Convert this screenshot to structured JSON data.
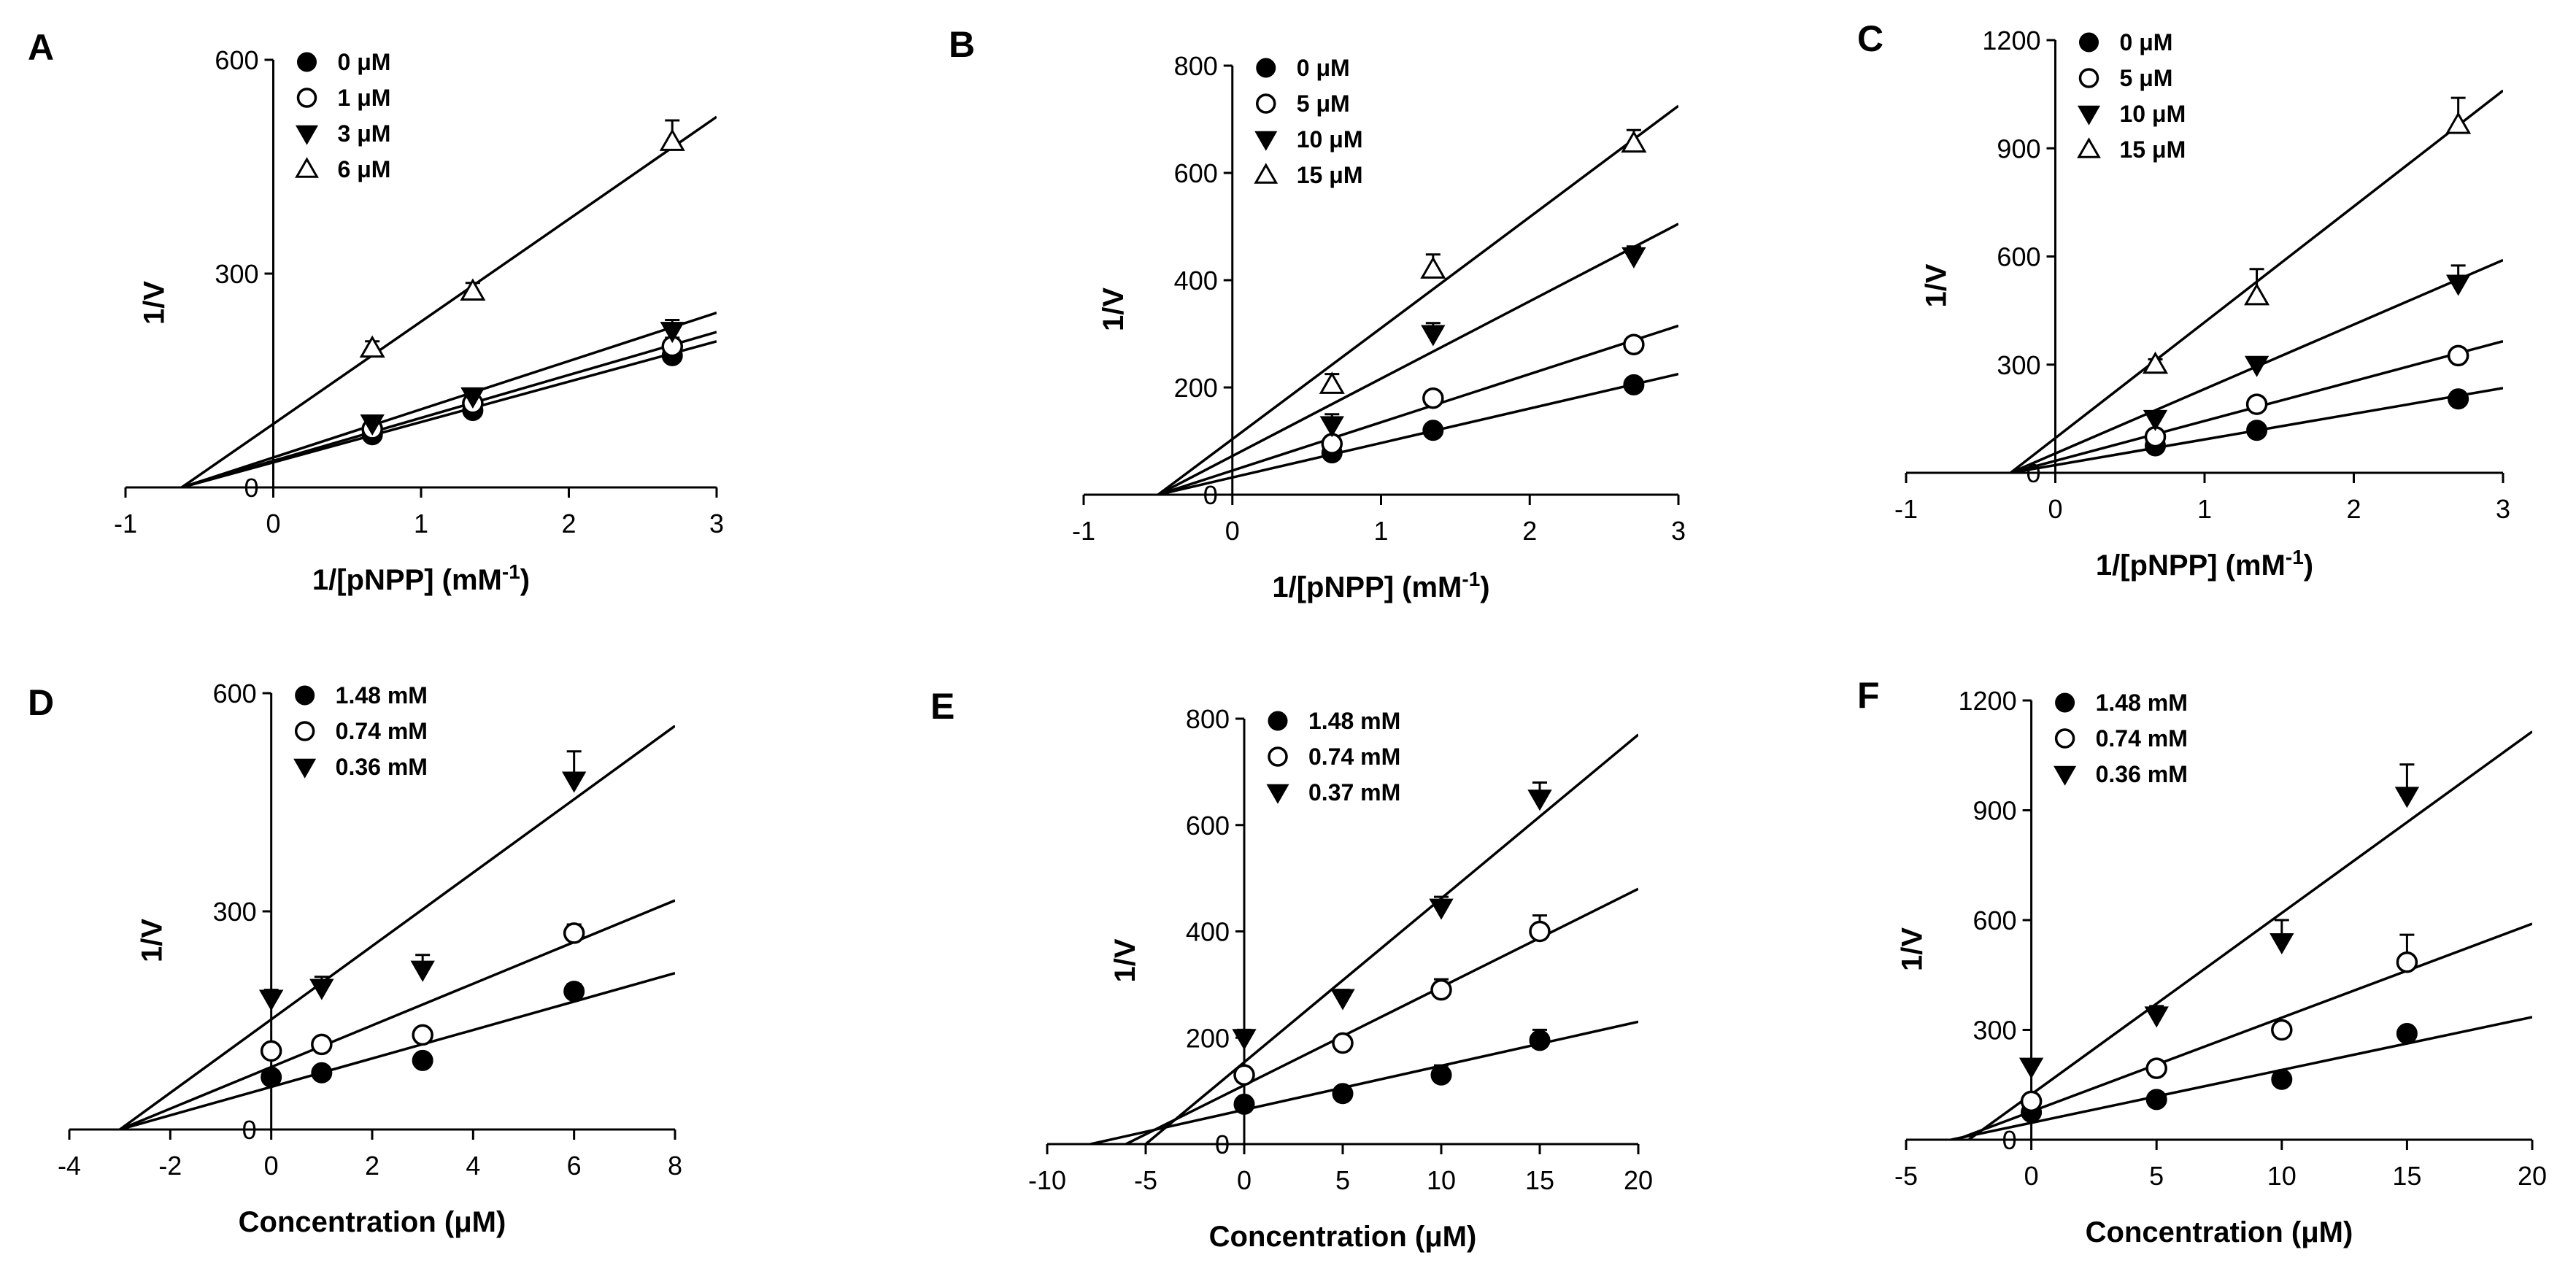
{
  "colors": {
    "ink": "#000000",
    "background": "#ffffff",
    "open_fill": "#ffffff"
  },
  "chart_data": [
    {
      "panel": "A",
      "type": "scatter",
      "xlabel": "1/[pNPP] (mM",
      "xlabel_sup": "-1",
      "xlabel_end": ")",
      "ylabel": "1/V",
      "xlim": [
        -1,
        3
      ],
      "ylim": [
        0,
        600
      ],
      "xticks": [
        -1,
        0,
        1,
        2,
        3
      ],
      "yticks": [
        0,
        300,
        600
      ],
      "legend_position": "top-left",
      "series": [
        {
          "name": "0 μM",
          "marker": "filled-circle",
          "x": [
            0.67,
            1.35,
            2.7
          ],
          "y": [
            74,
            108,
            185
          ],
          "err": [
            6,
            8,
            10
          ],
          "line": [
            [
              -0.62,
              0
            ],
            [
              3,
              205
            ]
          ]
        },
        {
          "name": "1 μM",
          "marker": "open-circle",
          "x": [
            0.67,
            1.35,
            2.7
          ],
          "y": [
            82,
            118,
            198
          ],
          "err": [
            6,
            8,
            12
          ],
          "line": [
            [
              -0.62,
              0
            ],
            [
              3,
              218
            ]
          ]
        },
        {
          "name": "3 μM",
          "marker": "filled-triangle-down",
          "x": [
            0.67,
            1.35,
            2.7
          ],
          "y": [
            90,
            128,
            220
          ],
          "err": [
            8,
            8,
            15
          ],
          "line": [
            [
              -0.62,
              0
            ],
            [
              3,
              245
            ]
          ]
        },
        {
          "name": "6 μM",
          "marker": "open-triangle-up",
          "x": [
            0.67,
            1.35,
            2.7
          ],
          "y": [
            195,
            275,
            485
          ],
          "err": [
            10,
            12,
            30
          ],
          "line": [
            [
              -0.62,
              0
            ],
            [
              3,
              520
            ]
          ]
        }
      ]
    },
    {
      "panel": "B",
      "type": "scatter",
      "xlabel": "1/[pNPP] (mM",
      "xlabel_sup": "-1",
      "xlabel_end": ")",
      "ylabel": "1/V",
      "xlim": [
        -1,
        3
      ],
      "ylim": [
        0,
        800
      ],
      "xticks": [
        -1,
        0,
        1,
        2,
        3
      ],
      "yticks": [
        0,
        200,
        400,
        600,
        800
      ],
      "legend_position": "top-left",
      "series": [
        {
          "name": "0 μM",
          "marker": "filled-circle",
          "x": [
            0.67,
            1.35,
            2.7
          ],
          "y": [
            78,
            120,
            205
          ],
          "err": [
            5,
            8,
            8
          ],
          "line": [
            [
              -0.5,
              0
            ],
            [
              3,
              225
            ]
          ]
        },
        {
          "name": "5 μM",
          "marker": "open-circle",
          "x": [
            0.67,
            1.35,
            2.7
          ],
          "y": [
            95,
            180,
            280
          ],
          "err": [
            8,
            10,
            12
          ],
          "line": [
            [
              -0.5,
              0
            ],
            [
              3,
              315
            ]
          ]
        },
        {
          "name": "10 μM",
          "marker": "filled-triangle-down",
          "x": [
            0.67,
            1.35,
            2.7
          ],
          "y": [
            130,
            300,
            445
          ],
          "err": [
            20,
            20,
            18
          ],
          "line": [
            [
              -0.5,
              0
            ],
            [
              3,
              505
            ]
          ]
        },
        {
          "name": "15 μM",
          "marker": "open-triangle-up",
          "x": [
            0.67,
            1.35,
            2.7
          ],
          "y": [
            205,
            420,
            655
          ],
          "err": [
            20,
            28,
            25
          ],
          "line": [
            [
              -0.5,
              0
            ],
            [
              3,
              725
            ]
          ]
        }
      ]
    },
    {
      "panel": "C",
      "type": "scatter",
      "xlabel": "1/[pNPP] (mM",
      "xlabel_sup": "-1",
      "xlabel_end": ")",
      "ylabel": "1/V",
      "xlim": [
        -1,
        3
      ],
      "ylim": [
        0,
        1200
      ],
      "xticks": [
        -1,
        0,
        1,
        2,
        3
      ],
      "yticks": [
        0,
        300,
        600,
        900,
        1200
      ],
      "legend_position": "top-left",
      "series": [
        {
          "name": "0 μM",
          "marker": "filled-circle",
          "x": [
            0.67,
            1.35,
            2.7
          ],
          "y": [
            75,
            118,
            205
          ],
          "err": [
            5,
            8,
            8
          ],
          "line": [
            [
              -0.3,
              0
            ],
            [
              3,
              235
            ]
          ]
        },
        {
          "name": "5 μM",
          "marker": "open-circle",
          "x": [
            0.67,
            1.35,
            2.7
          ],
          "y": [
            100,
            190,
            325
          ],
          "err": [
            8,
            10,
            12
          ],
          "line": [
            [
              -0.3,
              0
            ],
            [
              3,
              365
            ]
          ]
        },
        {
          "name": "10 μM",
          "marker": "filled-triangle-down",
          "x": [
            0.67,
            1.35,
            2.7
          ],
          "y": [
            150,
            300,
            525
          ],
          "err": [
            10,
            15,
            50
          ],
          "line": [
            [
              -0.3,
              0
            ],
            [
              3,
              590
            ]
          ]
        },
        {
          "name": "15 μM",
          "marker": "open-triangle-up",
          "x": [
            0.67,
            1.35,
            2.7
          ],
          "y": [
            300,
            490,
            965
          ],
          "err": [
            15,
            75,
            75
          ],
          "line": [
            [
              -0.3,
              0
            ],
            [
              3,
              1060
            ]
          ]
        }
      ]
    },
    {
      "panel": "D",
      "type": "scatter",
      "xlabel": "Concentration (μM)",
      "ylabel": "1/V",
      "xlim": [
        -4,
        8
      ],
      "ylim": [
        0,
        600
      ],
      "xticks": [
        -4,
        -2,
        0,
        2,
        4,
        6,
        8
      ],
      "yticks": [
        0,
        300,
        600
      ],
      "legend_position": "top-left",
      "series": [
        {
          "name": "1.48 mM",
          "marker": "filled-circle",
          "x": [
            0,
            1,
            3,
            6
          ],
          "y": [
            72,
            78,
            95,
            190
          ],
          "err": [
            5,
            5,
            6,
            10
          ],
          "line": [
            [
              -3.0,
              0
            ],
            [
              8,
              215
            ]
          ]
        },
        {
          "name": "0.74 mM",
          "marker": "open-circle",
          "x": [
            0,
            1,
            3,
            6
          ],
          "y": [
            108,
            117,
            130,
            270
          ],
          "err": [
            6,
            6,
            8,
            12
          ],
          "line": [
            [
              -3.0,
              0
            ],
            [
              8,
              315
            ]
          ]
        },
        {
          "name": "0.36 mM",
          "marker": "filled-triangle-down",
          "x": [
            0,
            1,
            3,
            6
          ],
          "y": [
            180,
            195,
            220,
            480
          ],
          "err": [
            12,
            15,
            20,
            40
          ],
          "line": [
            [
              -3.0,
              0
            ],
            [
              8,
              555
            ]
          ]
        }
      ]
    },
    {
      "panel": "E",
      "type": "scatter",
      "xlabel": "Concentration (μM)",
      "ylabel": "1/V",
      "xlim": [
        -10,
        20
      ],
      "ylim": [
        0,
        800
      ],
      "xticks": [
        -10,
        -5,
        0,
        5,
        10,
        15,
        20
      ],
      "yticks": [
        0,
        200,
        400,
        600,
        800
      ],
      "legend_position": "top-left",
      "series": [
        {
          "name": "1.48 mM",
          "marker": "filled-circle",
          "x": [
            0,
            5,
            10,
            15
          ],
          "y": [
            75,
            95,
            130,
            195
          ],
          "err": [
            6,
            8,
            18,
            20
          ],
          "line": [
            [
              -7.8,
              0
            ],
            [
              20,
              230
            ]
          ]
        },
        {
          "name": "0.74 mM",
          "marker": "open-circle",
          "x": [
            0,
            5,
            10,
            15
          ],
          "y": [
            130,
            190,
            290,
            400
          ],
          "err": [
            10,
            12,
            20,
            30
          ],
          "line": [
            [
              -6.0,
              0
            ],
            [
              20,
              480
            ]
          ]
        },
        {
          "name": "0.37 mM",
          "marker": "filled-triangle-down",
          "x": [
            0,
            5,
            10,
            15
          ],
          "y": [
            200,
            275,
            445,
            650
          ],
          "err": [
            15,
            15,
            20,
            30
          ],
          "line": [
            [
              -5.0,
              0
            ],
            [
              20,
              770
            ]
          ]
        }
      ]
    },
    {
      "panel": "F",
      "type": "scatter",
      "xlabel": "Concentration (μM)",
      "ylabel": "1/V",
      "xlim": [
        -5,
        20
      ],
      "ylim": [
        0,
        1200
      ],
      "xticks": [
        -5,
        0,
        5,
        10,
        15,
        20
      ],
      "yticks": [
        0,
        300,
        600,
        900,
        1200
      ],
      "legend_position": "top-left",
      "series": [
        {
          "name": "1.48 mM",
          "marker": "filled-circle",
          "x": [
            0,
            5,
            10,
            15
          ],
          "y": [
            75,
            110,
            165,
            290
          ],
          "err": [
            8,
            10,
            15,
            15
          ],
          "line": [
            [
              -3.2,
              0
            ],
            [
              20,
              335
            ]
          ]
        },
        {
          "name": "0.74 mM",
          "marker": "open-circle",
          "x": [
            0,
            5,
            10,
            15
          ],
          "y": [
            105,
            195,
            300,
            485
          ],
          "err": [
            10,
            12,
            20,
            75
          ],
          "line": [
            [
              -3.0,
              0
            ],
            [
              20,
              590
            ]
          ]
        },
        {
          "name": "0.36 mM",
          "marker": "filled-triangle-down",
          "x": [
            0,
            5,
            10,
            15
          ],
          "y": [
            200,
            340,
            540,
            940
          ],
          "err": [
            20,
            25,
            60,
            85
          ],
          "line": [
            [
              -2.5,
              0
            ],
            [
              20,
              1115
            ]
          ]
        }
      ]
    }
  ]
}
